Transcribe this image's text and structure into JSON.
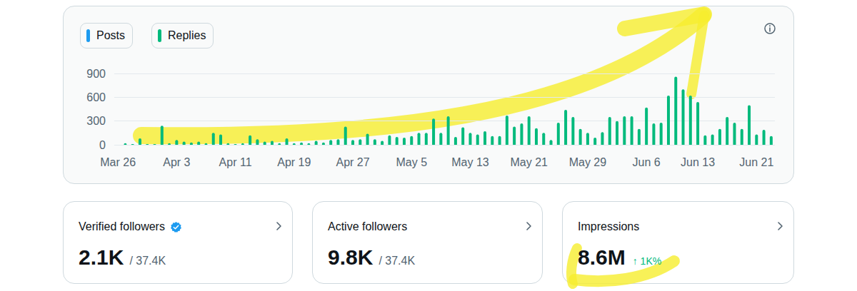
{
  "chart_data": {
    "type": "bar",
    "categories": [
      "Mar 26",
      null,
      null,
      null,
      null,
      null,
      null,
      null,
      "Apr 3",
      null,
      null,
      null,
      null,
      null,
      null,
      null,
      "Apr 11",
      null,
      null,
      null,
      null,
      null,
      null,
      null,
      "Apr 19",
      null,
      null,
      null,
      null,
      null,
      null,
      null,
      "Apr 27",
      null,
      null,
      null,
      null,
      null,
      null,
      null,
      "May 5",
      null,
      null,
      null,
      null,
      null,
      null,
      null,
      "May 13",
      null,
      null,
      null,
      null,
      null,
      null,
      null,
      "May 21",
      null,
      null,
      null,
      null,
      null,
      null,
      null,
      "May 29",
      null,
      null,
      null,
      null,
      null,
      null,
      null,
      "Jun 6",
      null,
      null,
      null,
      null,
      null,
      null,
      "Jun 13",
      null,
      null,
      null,
      null,
      null,
      null,
      null,
      "Jun 21",
      null,
      null
    ],
    "series": [
      {
        "name": "Posts",
        "color": "#1d9bf0",
        "values": [
          0,
          0,
          0,
          0,
          0,
          0,
          0,
          0,
          0,
          0,
          0,
          0,
          0,
          0,
          0,
          0,
          0,
          0,
          0,
          0,
          0,
          0,
          0,
          0,
          0,
          0,
          0,
          0,
          0,
          0,
          0,
          0,
          0,
          0,
          0,
          0,
          0,
          0,
          0,
          0,
          0,
          0,
          0,
          0,
          0,
          0,
          0,
          0,
          0,
          0,
          0,
          0,
          0,
          0,
          0,
          0,
          0,
          0,
          0,
          0,
          0,
          0,
          0,
          0,
          0,
          0,
          0,
          0,
          0,
          0,
          0,
          0,
          0,
          0,
          0,
          0,
          0,
          0,
          0,
          0,
          0,
          0,
          0,
          0,
          0,
          0,
          0,
          0,
          0,
          0
        ]
      },
      {
        "name": "Replies",
        "color": "#00ba7c",
        "values": [
          0,
          20,
          10,
          80,
          10,
          10,
          240,
          20,
          60,
          40,
          30,
          40,
          20,
          150,
          130,
          20,
          10,
          20,
          120,
          70,
          40,
          50,
          20,
          80,
          20,
          30,
          20,
          50,
          30,
          60,
          70,
          230,
          60,
          70,
          140,
          70,
          50,
          120,
          100,
          90,
          110,
          150,
          150,
          330,
          150,
          360,
          100,
          220,
          150,
          130,
          170,
          110,
          110,
          370,
          230,
          270,
          360,
          210,
          150,
          60,
          280,
          440,
          350,
          200,
          150,
          90,
          160,
          350,
          300,
          360,
          360,
          200,
          470,
          270,
          280,
          620,
          860,
          700,
          620,
          540,
          120,
          130,
          200,
          350,
          280,
          200,
          500,
          130,
          190,
          110
        ]
      }
    ],
    "ylim": [
      0,
      900
    ],
    "yticks": [
      0,
      300,
      600,
      900
    ],
    "grid": true,
    "legend": "top-left"
  },
  "cards": [
    {
      "title": "Verified followers",
      "verified": true,
      "value": "2.1K",
      "total": "/ 37.4K"
    },
    {
      "title": "Active followers",
      "value": "9.8K",
      "total": "/ 37.4K"
    },
    {
      "title": "Impressions",
      "value": "8.6M",
      "change": "↑ 1K%"
    }
  ]
}
